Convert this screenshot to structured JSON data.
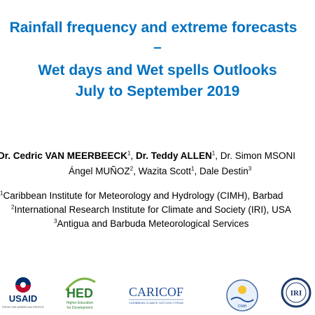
{
  "slide": {
    "title_line1": "Rainfall frequency and extreme forecasts",
    "title_line2": "–",
    "title_line3": "Wet days and Wet spells Outlooks",
    "title_line4": "July to September 2019",
    "authors": [
      {
        "name": "Dr. Cedric VAN MEERBEECK",
        "sup": "1",
        "bold": true
      },
      {
        "name": "Dr. Teddy ALLEN",
        "sup": "1",
        "bold": true
      },
      {
        "name": "Dr. Simon MSONI",
        "sup": "",
        "bold": false
      },
      {
        "name": "Ángel MUÑOZ",
        "sup": "2",
        "bold": false
      },
      {
        "name": "Wazita Scott",
        "sup": "1",
        "bold": false
      },
      {
        "name": "Dale Destin",
        "sup": "3",
        "bold": false
      }
    ],
    "affiliations": [
      {
        "sup": "1",
        "text": "Caribbean Institute for Meteorology and Hydrology (CIMH), Barbad"
      },
      {
        "sup": "2",
        "text": "International Research Institute for Climate and Society (IRI), USA"
      },
      {
        "sup": "3",
        "text": "Antigua and Barbuda Meteorological Services"
      }
    ]
  },
  "logos": {
    "usaid": {
      "text": "USAID",
      "tagline": "FROM THE AMERICAN PEOPLE"
    },
    "hed": {
      "text": "HED",
      "tagline1": "Higher Education",
      "tagline2": "for Development"
    },
    "caricof": {
      "text": "CARICOF",
      "tagline": "CARIBBEAN CLIMATE OUTLOOK FORUM"
    },
    "cimh": {
      "text": "CIMH"
    },
    "iri": {
      "text": "IRI"
    }
  },
  "colors": {
    "title": "#0070c0",
    "usaid_blue": "#002f6c",
    "usaid_red": "#ba0c2f",
    "hed_green": "#2e7d32",
    "caricof_blue": "#1f4e9a"
  }
}
